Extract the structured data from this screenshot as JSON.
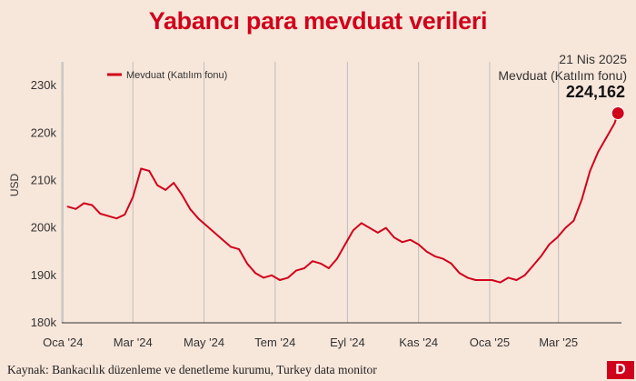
{
  "header": {
    "title": "Yabancı para mevduat verileri"
  },
  "footer": {
    "source": "Kaynak: Bankacılık düzenleme ve denetleme kurumu, Turkey data monitor",
    "logo_text": "D"
  },
  "colors": {
    "accent": "#d0021b",
    "background": "#f7e6da",
    "grid": "#bfbfbf"
  },
  "chart_data": {
    "type": "line",
    "title": "Yabancı para mevduat verileri",
    "xlabel": "",
    "ylabel": "USD",
    "ylim": [
      180000,
      235000
    ],
    "yticks": [
      180000,
      190000,
      200000,
      210000,
      220000,
      230000
    ],
    "ytick_labels": [
      "180k",
      "190k",
      "200k",
      "210k",
      "220k",
      "230k"
    ],
    "xlim": [
      "2023-12-31",
      "2025-04-24"
    ],
    "xticks": [
      "2024-01-01",
      "2024-03-01",
      "2024-05-01",
      "2024-07-01",
      "2024-09-01",
      "2024-11-01",
      "2025-01-01",
      "2025-03-01"
    ],
    "xtick_labels": [
      "Oca '24",
      "Mar '24",
      "May '24",
      "Tem '24",
      "Eyl '24",
      "Kas '24",
      "Oca '25",
      "Mar '25"
    ],
    "grid": "vertical",
    "legend": "top-left",
    "series": [
      {
        "name": "Mevduat  (Katılım fonu)",
        "color": "#d0021b",
        "x": [
          "2024-01-05",
          "2024-01-12",
          "2024-01-19",
          "2024-01-26",
          "2024-02-02",
          "2024-02-09",
          "2024-02-16",
          "2024-02-23",
          "2024-03-01",
          "2024-03-08",
          "2024-03-15",
          "2024-03-22",
          "2024-03-29",
          "2024-04-05",
          "2024-04-12",
          "2024-04-19",
          "2024-04-26",
          "2024-05-03",
          "2024-05-10",
          "2024-05-17",
          "2024-05-24",
          "2024-05-31",
          "2024-06-07",
          "2024-06-14",
          "2024-06-21",
          "2024-06-28",
          "2024-07-05",
          "2024-07-12",
          "2024-07-19",
          "2024-07-26",
          "2024-08-02",
          "2024-08-09",
          "2024-08-16",
          "2024-08-23",
          "2024-08-30",
          "2024-09-06",
          "2024-09-13",
          "2024-09-20",
          "2024-09-27",
          "2024-10-04",
          "2024-10-11",
          "2024-10-18",
          "2024-10-25",
          "2024-11-01",
          "2024-11-08",
          "2024-11-15",
          "2024-11-22",
          "2024-11-29",
          "2024-12-06",
          "2024-12-13",
          "2024-12-20",
          "2024-12-27",
          "2025-01-03",
          "2025-01-10",
          "2025-01-17",
          "2025-01-24",
          "2025-01-31",
          "2025-02-07",
          "2025-02-14",
          "2025-02-21",
          "2025-02-28",
          "2025-03-07",
          "2025-03-14",
          "2025-03-21",
          "2025-03-28",
          "2025-04-04",
          "2025-04-11",
          "2025-04-18",
          "2025-04-21"
        ],
        "values": [
          204500,
          204000,
          205200,
          204800,
          203000,
          202500,
          202000,
          202800,
          206500,
          212500,
          212000,
          209000,
          208000,
          209500,
          207000,
          204000,
          202000,
          200500,
          199000,
          197500,
          196000,
          195500,
          192500,
          190500,
          189500,
          190000,
          189000,
          189500,
          191000,
          191500,
          193000,
          192500,
          191500,
          193500,
          196500,
          199500,
          201000,
          200000,
          199000,
          200000,
          198000,
          197000,
          197500,
          196500,
          195000,
          194000,
          193500,
          192500,
          190500,
          189500,
          189000,
          189000,
          189000,
          188500,
          189500,
          189000,
          190000,
          192000,
          194000,
          196500,
          198000,
          200000,
          201500,
          206000,
          212000,
          216000,
          219000,
          222000,
          224162
        ]
      }
    ],
    "annotation": {
      "date_label": "21 Nis 2025",
      "series_label": "Mevduat (Katılım fonu)",
      "value_label": "224,162",
      "x": "2025-04-21",
      "y": 224162
    }
  }
}
